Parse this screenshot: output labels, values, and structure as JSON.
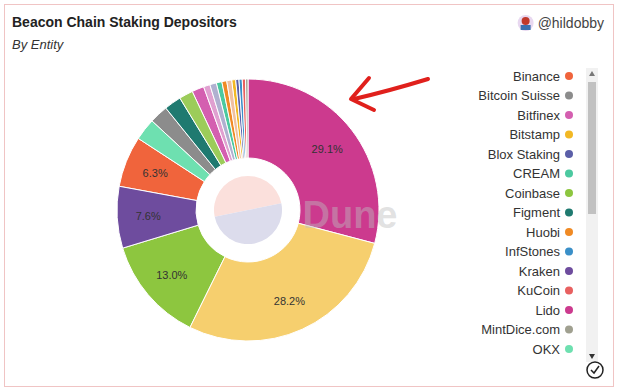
{
  "chart_data": {
    "type": "pie",
    "title": "Beacon Chain Staking Depositors",
    "subtitle": "By Entity",
    "annotations": [
      "@hildobby",
      "Dune"
    ],
    "categories": [
      "Binance",
      "Bitcoin Suisse",
      "Bitfinex",
      "Bitstamp",
      "Blox Staking",
      "CREAM",
      "Coinbase",
      "Figment",
      "Huobi",
      "InfStones",
      "Kraken",
      "KuCoin",
      "Lido",
      "MintDice.com",
      "OKX",
      null,
      null,
      null,
      null,
      null
    ],
    "values": [
      6.3,
      2.3,
      1.5,
      0.5,
      0.4,
      0.7,
      13.0,
      2.1,
      0.6,
      0.4,
      7.6,
      0.4,
      29.1,
      0.3,
      2.7,
      28.2,
      1.7,
      0.8,
      0.8,
      0.6
    ],
    "value_labels": [
      "6.3%",
      null,
      null,
      null,
      null,
      null,
      "13.0%",
      null,
      null,
      null,
      "7.6%",
      null,
      "29.1%",
      null,
      null,
      "28.2%",
      null,
      null,
      null,
      null
    ],
    "colors": [
      "#f0643c",
      "#8c8c8c",
      "#d45fb0",
      "#f2b824",
      "#5b5fa8",
      "#4cc9a0",
      "#8dc63f",
      "#1f7a70",
      "#f08a24",
      "#3a8fc8",
      "#6e4c9e",
      "#e86060",
      "#cc3a8e",
      "#a0a090",
      "#6ee0b0",
      "#f6cf6e",
      "#9ccc5a",
      "#e0a0d0",
      "#b0b0d0",
      "#f0c0a0"
    ],
    "data_labels": true,
    "legend": "right"
  }
}
